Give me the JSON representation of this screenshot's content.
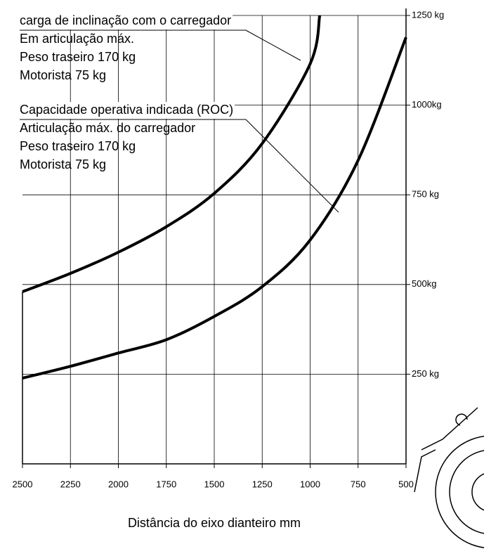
{
  "chart_data": {
    "type": "line",
    "xlabel": "Distância do eixo dianteiro mm",
    "xlim": [
      2500,
      500
    ],
    "xticks": [
      2500,
      2250,
      2000,
      1750,
      1500,
      1250,
      1000,
      750,
      500
    ],
    "ylim": [
      0,
      1250
    ],
    "yticks": [
      {
        "value": 250,
        "label": "250 kg"
      },
      {
        "value": 500,
        "label": "500kg"
      },
      {
        "value": 750,
        "label": "750 kg"
      },
      {
        "value": 1000,
        "label": "1000kg"
      },
      {
        "value": 1250,
        "label": "1250 kg"
      }
    ],
    "grid": true,
    "series": [
      {
        "name": "carga de inclinação com o carregador",
        "color": "#000000",
        "notes": [
          "Em articulação máx.",
          "Peso traseiro 170 kg",
          "Motorista 75 kg"
        ],
        "x": [
          2500,
          2250,
          2000,
          1750,
          1500,
          1250,
          1000,
          950
        ],
        "values": [
          480,
          531,
          590,
          661,
          754,
          893,
          1115,
          1250
        ]
      },
      {
        "name": "Capacidade operativa indicada (ROC)",
        "color": "#000000",
        "notes": [
          "Articulação máx. do carregador",
          "Peso traseiro 170 kg",
          "Motorista 75 kg"
        ],
        "x": [
          2500,
          2250,
          2000,
          1750,
          1500,
          1250,
          1000,
          750,
          500
        ],
        "values": [
          239,
          272,
          309,
          346,
          411,
          494,
          624,
          846,
          1189
        ]
      }
    ]
  }
}
